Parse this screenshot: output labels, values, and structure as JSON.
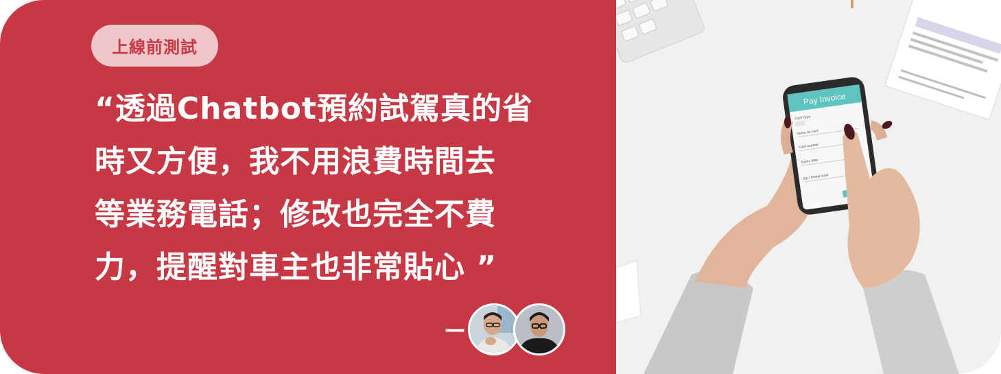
{
  "tag": {
    "label": "上線前測試"
  },
  "quote": {
    "lines": [
      "“透過Chatbot預約試駕真的省",
      "時又方便，我不用浪費時間去",
      "等業務電話；修改也完全不費",
      "力，提醒對車主也非常貼心 ”"
    ]
  },
  "attribution": {
    "dash": "—"
  },
  "phone_screen": {
    "title": "Pay Invoice",
    "fields": [
      "Card Type",
      "Name on card",
      "Card number",
      "Expiry date",
      "Zip / Postal code"
    ]
  },
  "colors": {
    "accent": "#c83744",
    "pill_bg": "#f2c7cc",
    "text": "#ffffff"
  }
}
